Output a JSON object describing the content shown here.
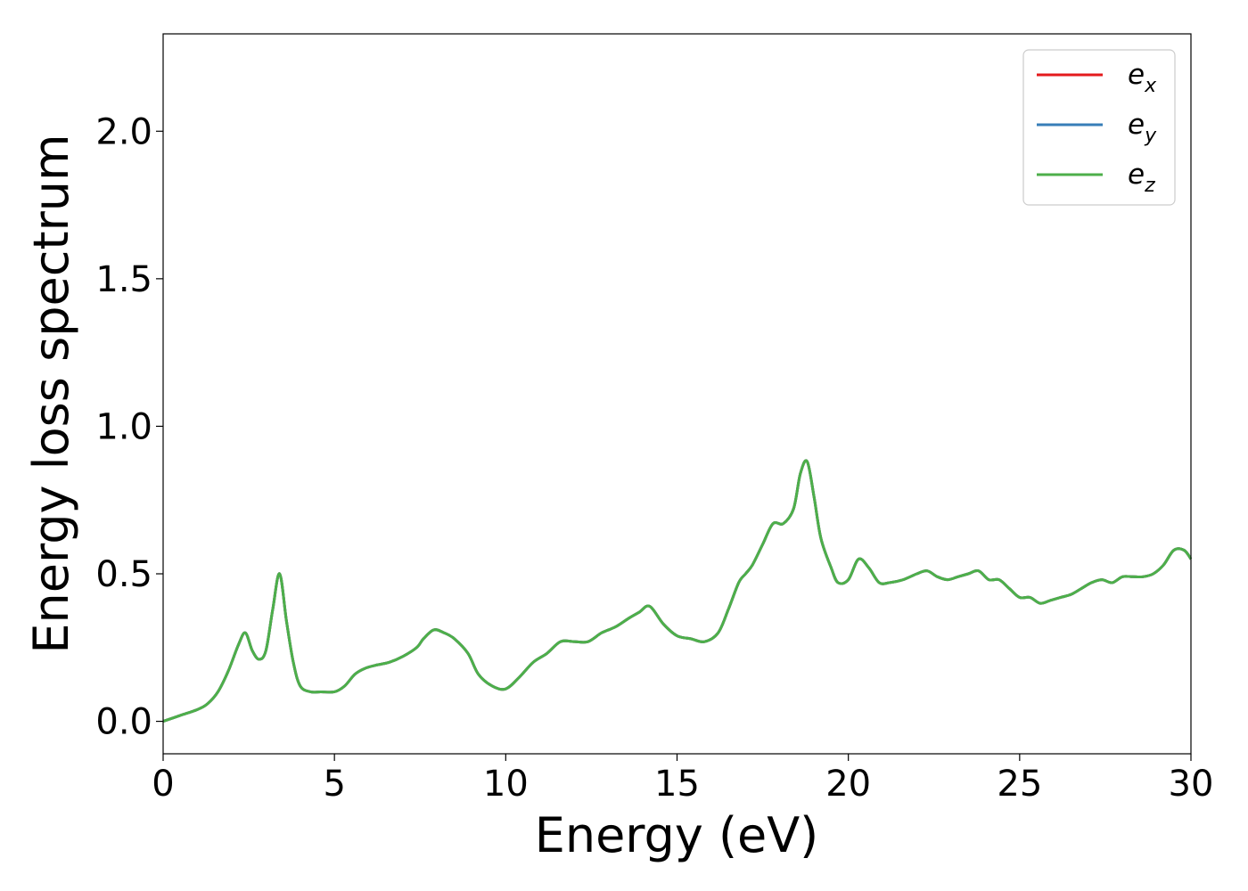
{
  "chart_data": {
    "type": "line",
    "title": "",
    "xlabel": "Energy (eV)",
    "ylabel": "Energy loss spectrum",
    "xlim": [
      0,
      30
    ],
    "ylim": [
      -0.11,
      2.33
    ],
    "xticks": [
      0,
      5,
      10,
      15,
      20,
      25,
      30
    ],
    "xtick_labels": [
      "0",
      "5",
      "10",
      "15",
      "20",
      "25",
      "30"
    ],
    "yticks": [
      0.0,
      0.5,
      1.0,
      1.5,
      2.0
    ],
    "ytick_labels": [
      "0.0",
      "0.5",
      "1.0",
      "1.5",
      "2.0"
    ],
    "grid": false,
    "legend_position": "top-right",
    "series": [
      {
        "name": "e_x",
        "legend_base": "e",
        "legend_sub": "x",
        "color": "#e41a1c",
        "x": [
          0,
          0.5,
          1.0,
          1.3,
          1.6,
          1.9,
          2.2,
          2.4,
          2.6,
          2.8,
          3.0,
          3.2,
          3.4,
          3.6,
          3.8,
          4.0,
          4.3,
          4.6,
          5.0,
          5.3,
          5.6,
          5.9,
          6.2,
          6.6,
          7.0,
          7.4,
          7.6,
          7.9,
          8.2,
          8.5,
          8.9,
          9.2,
          9.6,
          10.0,
          10.4,
          10.8,
          11.2,
          11.6,
          12.0,
          12.4,
          12.8,
          13.2,
          13.6,
          13.9,
          14.2,
          14.6,
          15.0,
          15.4,
          15.8,
          16.2,
          16.5,
          16.8,
          17.0,
          17.2,
          17.5,
          17.8,
          18.1,
          18.4,
          18.6,
          18.8,
          19.0,
          19.2,
          19.5,
          19.7,
          20.0,
          20.3,
          20.6,
          20.9,
          21.2,
          21.6,
          22.0,
          22.3,
          22.6,
          22.9,
          23.2,
          23.5,
          23.8,
          24.1,
          24.4,
          24.7,
          25.0,
          25.3,
          25.6,
          25.9,
          26.2,
          26.5,
          26.8,
          27.1,
          27.4,
          27.7,
          28.0,
          28.3,
          28.6,
          28.9,
          29.2,
          29.5,
          29.8,
          30.0
        ],
        "y": [
          0.0,
          0.02,
          0.04,
          0.06,
          0.1,
          0.17,
          0.26,
          0.3,
          0.24,
          0.21,
          0.24,
          0.38,
          0.5,
          0.34,
          0.2,
          0.12,
          0.1,
          0.1,
          0.1,
          0.12,
          0.16,
          0.18,
          0.19,
          0.2,
          0.22,
          0.25,
          0.28,
          0.31,
          0.3,
          0.28,
          0.23,
          0.16,
          0.12,
          0.11,
          0.15,
          0.2,
          0.23,
          0.27,
          0.27,
          0.27,
          0.3,
          0.32,
          0.35,
          0.37,
          0.39,
          0.33,
          0.29,
          0.28,
          0.27,
          0.3,
          0.38,
          0.47,
          0.5,
          0.53,
          0.6,
          0.67,
          0.67,
          0.72,
          0.84,
          0.88,
          0.76,
          0.62,
          0.52,
          0.47,
          0.48,
          0.55,
          0.52,
          0.47,
          0.47,
          0.48,
          0.5,
          0.51,
          0.49,
          0.48,
          0.49,
          0.5,
          0.51,
          0.48,
          0.48,
          0.45,
          0.42,
          0.42,
          0.4,
          0.41,
          0.42,
          0.43,
          0.45,
          0.47,
          0.48,
          0.47,
          0.49,
          0.49,
          0.49,
          0.5,
          0.53,
          0.58,
          0.58,
          0.55
        ]
      },
      {
        "name": "e_y",
        "legend_base": "e",
        "legend_sub": "y",
        "color": "#377eb8",
        "x": [
          0,
          0.5,
          1.0,
          1.3,
          1.6,
          1.9,
          2.2,
          2.4,
          2.6,
          2.8,
          3.0,
          3.2,
          3.4,
          3.6,
          3.8,
          4.0,
          4.3,
          4.6,
          5.0,
          5.3,
          5.6,
          5.9,
          6.2,
          6.6,
          7.0,
          7.4,
          7.6,
          7.9,
          8.2,
          8.5,
          8.9,
          9.2,
          9.6,
          10.0,
          10.4,
          10.8,
          11.2,
          11.6,
          12.0,
          12.4,
          12.8,
          13.2,
          13.6,
          13.9,
          14.2,
          14.6,
          15.0,
          15.4,
          15.8,
          16.2,
          16.5,
          16.8,
          17.0,
          17.2,
          17.5,
          17.8,
          18.1,
          18.4,
          18.6,
          18.8,
          19.0,
          19.2,
          19.5,
          19.7,
          20.0,
          20.3,
          20.6,
          20.9,
          21.2,
          21.6,
          22.0,
          22.3,
          22.6,
          22.9,
          23.2,
          23.5,
          23.8,
          24.1,
          24.4,
          24.7,
          25.0,
          25.3,
          25.6,
          25.9,
          26.2,
          26.5,
          26.8,
          27.1,
          27.4,
          27.7,
          28.0,
          28.3,
          28.6,
          28.9,
          29.2,
          29.5,
          29.8,
          30.0
        ],
        "y": [
          0.0,
          0.02,
          0.04,
          0.06,
          0.1,
          0.17,
          0.26,
          0.3,
          0.24,
          0.21,
          0.24,
          0.38,
          0.5,
          0.34,
          0.2,
          0.12,
          0.1,
          0.1,
          0.1,
          0.12,
          0.16,
          0.18,
          0.19,
          0.2,
          0.22,
          0.25,
          0.28,
          0.31,
          0.3,
          0.28,
          0.23,
          0.16,
          0.12,
          0.11,
          0.15,
          0.2,
          0.23,
          0.27,
          0.27,
          0.27,
          0.3,
          0.32,
          0.35,
          0.37,
          0.39,
          0.33,
          0.29,
          0.28,
          0.27,
          0.3,
          0.38,
          0.47,
          0.5,
          0.53,
          0.6,
          0.67,
          0.67,
          0.72,
          0.84,
          0.88,
          0.76,
          0.62,
          0.52,
          0.47,
          0.48,
          0.55,
          0.52,
          0.47,
          0.47,
          0.48,
          0.5,
          0.51,
          0.49,
          0.48,
          0.49,
          0.5,
          0.51,
          0.48,
          0.48,
          0.45,
          0.42,
          0.42,
          0.4,
          0.41,
          0.42,
          0.43,
          0.45,
          0.47,
          0.48,
          0.47,
          0.49,
          0.49,
          0.49,
          0.5,
          0.53,
          0.58,
          0.58,
          0.55
        ]
      },
      {
        "name": "e_z",
        "legend_base": "e",
        "legend_sub": "z",
        "color": "#4daf4a",
        "x": [
          0,
          0.5,
          1.0,
          1.3,
          1.6,
          1.9,
          2.2,
          2.4,
          2.6,
          2.8,
          3.0,
          3.2,
          3.4,
          3.6,
          3.8,
          4.0,
          4.3,
          4.6,
          5.0,
          5.3,
          5.6,
          5.9,
          6.2,
          6.6,
          7.0,
          7.4,
          7.6,
          7.9,
          8.2,
          8.5,
          8.9,
          9.2,
          9.6,
          10.0,
          10.4,
          10.8,
          11.2,
          11.6,
          12.0,
          12.4,
          12.8,
          13.2,
          13.6,
          13.9,
          14.2,
          14.6,
          15.0,
          15.4,
          15.8,
          16.2,
          16.5,
          16.8,
          17.0,
          17.2,
          17.5,
          17.8,
          18.1,
          18.4,
          18.6,
          18.8,
          19.0,
          19.2,
          19.5,
          19.7,
          20.0,
          20.3,
          20.6,
          20.9,
          21.2,
          21.6,
          22.0,
          22.3,
          22.6,
          22.9,
          23.2,
          23.5,
          23.8,
          24.1,
          24.4,
          24.7,
          25.0,
          25.3,
          25.6,
          25.9,
          26.2,
          26.5,
          26.8,
          27.1,
          27.4,
          27.7,
          28.0,
          28.3,
          28.6,
          28.9,
          29.2,
          29.5,
          29.8,
          30.0
        ],
        "y": [
          0.0,
          0.02,
          0.04,
          0.06,
          0.1,
          0.17,
          0.26,
          0.3,
          0.24,
          0.21,
          0.24,
          0.38,
          0.5,
          0.34,
          0.2,
          0.12,
          0.1,
          0.1,
          0.1,
          0.12,
          0.16,
          0.18,
          0.19,
          0.2,
          0.22,
          0.25,
          0.28,
          0.31,
          0.3,
          0.28,
          0.23,
          0.16,
          0.12,
          0.11,
          0.15,
          0.2,
          0.23,
          0.27,
          0.27,
          0.27,
          0.3,
          0.32,
          0.35,
          0.37,
          0.39,
          0.33,
          0.29,
          0.28,
          0.27,
          0.3,
          0.38,
          0.47,
          0.5,
          0.53,
          0.6,
          0.67,
          0.67,
          0.72,
          0.84,
          0.88,
          0.76,
          0.62,
          0.52,
          0.47,
          0.48,
          0.55,
          0.52,
          0.47,
          0.47,
          0.48,
          0.5,
          0.51,
          0.49,
          0.48,
          0.49,
          0.5,
          0.51,
          0.48,
          0.48,
          0.45,
          0.42,
          0.42,
          0.4,
          0.41,
          0.42,
          0.43,
          0.45,
          0.47,
          0.48,
          0.47,
          0.49,
          0.49,
          0.49,
          0.5,
          0.53,
          0.58,
          0.58,
          0.55
        ]
      }
    ]
  }
}
